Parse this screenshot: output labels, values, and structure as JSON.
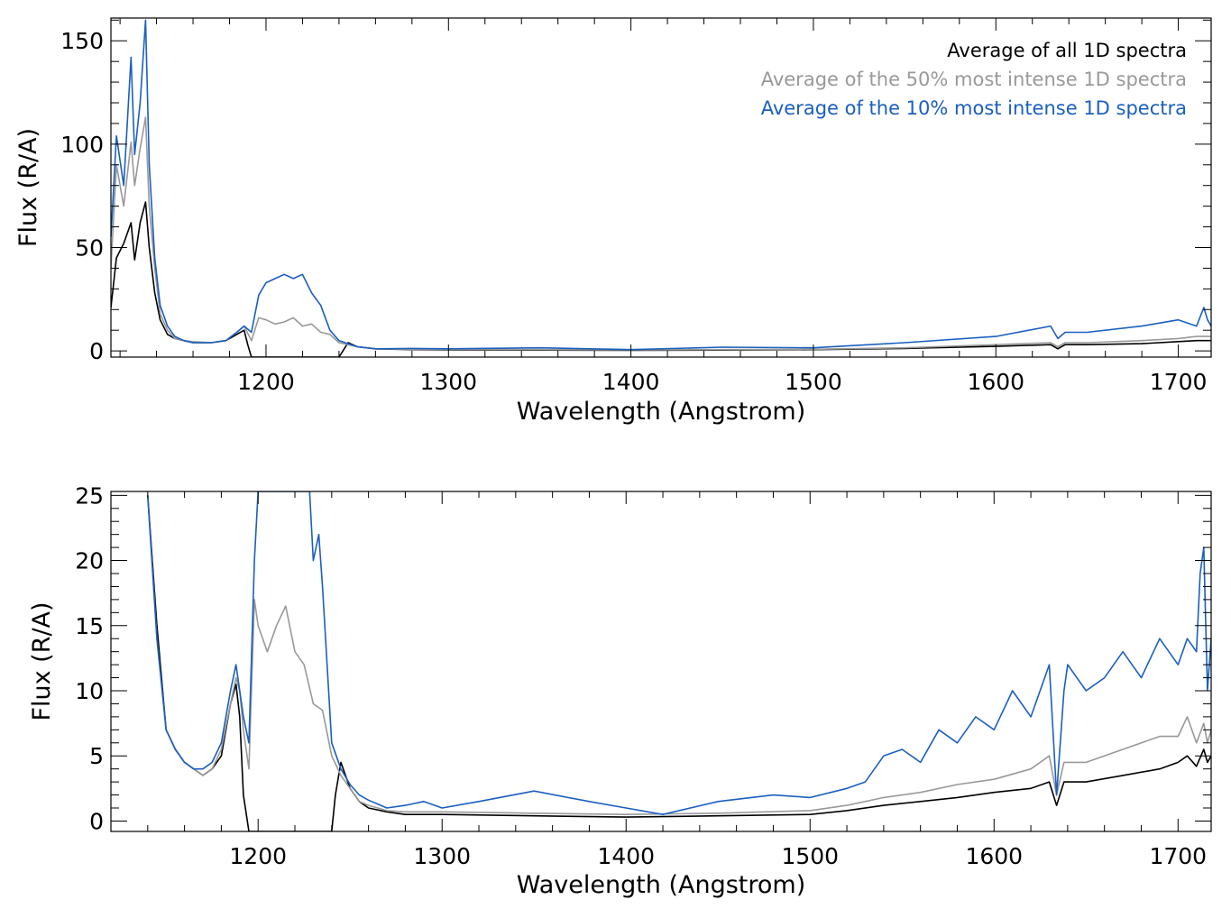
{
  "chart_data": [
    {
      "type": "line",
      "title": "",
      "xlabel": "Wavelength (Angstrom)",
      "ylabel": "Flux (R/A)",
      "xlim": [
        1115,
        1718
      ],
      "ylim": [
        -3,
        161
      ],
      "xticks": [
        1200,
        1300,
        1400,
        1500,
        1600,
        1700
      ],
      "yticks": [
        0,
        50,
        100,
        150
      ],
      "xminor_step": 20,
      "yminor_step": 10,
      "grid": false,
      "legend_position": "top-right",
      "legend": [
        {
          "label": "Average of all 1D spectra",
          "color": "#000000"
        },
        {
          "label": "Average of the 50% most intense 1D spectra",
          "color": "#999999"
        },
        {
          "label": "Average of the 10% most intense 1D spectra",
          "color": "#1a5fc0"
        }
      ],
      "series": [
        {
          "color": "#000000",
          "x": [
            1115,
            1118,
            1122,
            1126,
            1128,
            1131,
            1134,
            1136,
            1139,
            1142,
            1146,
            1150,
            1155,
            1160,
            1170,
            1178,
            1184,
            1188,
            1190,
            1192,
            1200,
            1240,
            1245,
            1250,
            1260,
            1280,
            1300,
            1350,
            1400,
            1450,
            1500,
            1550,
            1600,
            1630,
            1634,
            1638,
            1650,
            1680,
            1700,
            1710,
            1718
          ],
          "y": [
            21,
            45,
            52,
            62,
            44,
            62,
            72,
            50,
            28,
            15,
            8,
            6,
            5,
            4,
            4,
            5,
            8,
            10,
            3,
            -3,
            -3,
            -3,
            4,
            2,
            1,
            0.6,
            0.5,
            0.4,
            0.3,
            0.4,
            0.6,
            1.2,
            2.2,
            3,
            1,
            3,
            3,
            3.5,
            4.5,
            5,
            5
          ]
        },
        {
          "color": "#999999",
          "x": [
            1115,
            1118,
            1122,
            1126,
            1128,
            1131,
            1134,
            1136,
            1139,
            1142,
            1146,
            1150,
            1155,
            1160,
            1170,
            1178,
            1184,
            1188,
            1192,
            1196,
            1200,
            1205,
            1210,
            1215,
            1220,
            1225,
            1230,
            1235,
            1240,
            1245,
            1250,
            1260,
            1280,
            1300,
            1350,
            1400,
            1450,
            1500,
            1550,
            1600,
            1630,
            1634,
            1638,
            1650,
            1680,
            1700,
            1710,
            1718
          ],
          "y": [
            40,
            90,
            70,
            101,
            80,
            98,
            113,
            70,
            40,
            18,
            10,
            6,
            5,
            4.5,
            4,
            5,
            9,
            12,
            5,
            16,
            15,
            13,
            14,
            16,
            12,
            13,
            9,
            8,
            4,
            3,
            2,
            1,
            0.8,
            0.7,
            0.6,
            0.5,
            0.6,
            0.8,
            1.5,
            3,
            4,
            2,
            4,
            4,
            5,
            6,
            7,
            7
          ]
        },
        {
          "color": "#1a5fc0",
          "x": [
            1115,
            1118,
            1122,
            1126,
            1128,
            1131,
            1134,
            1136,
            1139,
            1142,
            1146,
            1150,
            1155,
            1160,
            1170,
            1178,
            1184,
            1188,
            1192,
            1196,
            1200,
            1205,
            1210,
            1215,
            1220,
            1225,
            1230,
            1235,
            1240,
            1245,
            1250,
            1260,
            1280,
            1300,
            1350,
            1400,
            1450,
            1500,
            1550,
            1600,
            1630,
            1634,
            1638,
            1650,
            1680,
            1700,
            1710,
            1714,
            1716,
            1718
          ],
          "y": [
            55,
            104,
            80,
            142,
            95,
            120,
            160,
            90,
            45,
            22,
            12,
            7,
            5,
            4,
            4,
            5,
            9,
            12,
            9,
            27,
            33,
            35,
            37,
            35,
            37,
            28,
            22,
            10,
            5,
            3.5,
            2,
            1,
            1.2,
            1,
            1.5,
            0.6,
            1.8,
            1.5,
            4,
            7,
            12,
            6,
            9,
            9,
            12,
            15,
            12,
            21,
            15,
            12
          ]
        }
      ]
    },
    {
      "type": "line",
      "title": "",
      "xlabel": "Wavelength (Angstrom)",
      "ylabel": "Flux (R/A)",
      "xlim": [
        1120,
        1718
      ],
      "ylim": [
        -0.8,
        25.3
      ],
      "xticks": [
        1200,
        1300,
        1400,
        1500,
        1600,
        1700
      ],
      "yticks": [
        0,
        5,
        10,
        15,
        20,
        25
      ],
      "xminor_step": 20,
      "yminor_step": 1,
      "grid": false,
      "series": [
        {
          "color": "#000000",
          "x": [
            1140,
            1145,
            1150,
            1155,
            1160,
            1165,
            1170,
            1175,
            1180,
            1185,
            1188,
            1190,
            1192,
            1195,
            1240,
            1242,
            1245,
            1250,
            1255,
            1260,
            1270,
            1280,
            1300,
            1350,
            1400,
            1450,
            1500,
            1520,
            1540,
            1560,
            1580,
            1600,
            1620,
            1630,
            1634,
            1638,
            1650,
            1670,
            1690,
            1700,
            1705,
            1710,
            1714,
            1716,
            1718
          ],
          "y": [
            25,
            15,
            7,
            5.5,
            4.5,
            4,
            3.5,
            4,
            5,
            9,
            10.5,
            8,
            2,
            -0.8,
            -0.8,
            2,
            4.5,
            2.5,
            1.5,
            1,
            0.7,
            0.5,
            0.5,
            0.4,
            0.3,
            0.4,
            0.5,
            0.8,
            1.2,
            1.5,
            1.8,
            2.2,
            2.5,
            3,
            1.2,
            3,
            3,
            3.5,
            4,
            4.5,
            5,
            4.2,
            5.5,
            4.5,
            5
          ]
        },
        {
          "color": "#999999",
          "x": [
            1140,
            1145,
            1150,
            1155,
            1160,
            1165,
            1170,
            1175,
            1180,
            1185,
            1188,
            1190,
            1192,
            1195,
            1198,
            1200,
            1205,
            1210,
            1215,
            1220,
            1225,
            1230,
            1235,
            1240,
            1245,
            1250,
            1255,
            1260,
            1270,
            1280,
            1300,
            1350,
            1400,
            1450,
            1500,
            1520,
            1540,
            1560,
            1580,
            1600,
            1620,
            1630,
            1634,
            1638,
            1650,
            1670,
            1690,
            1700,
            1705,
            1710,
            1714,
            1716,
            1718
          ],
          "y": [
            25,
            14,
            7,
            5.5,
            4.5,
            4,
            3.5,
            4,
            5.5,
            9,
            11,
            10,
            7,
            4,
            17,
            15,
            13,
            15,
            16.5,
            13,
            12,
            9,
            8.5,
            5,
            3.5,
            2.5,
            1.5,
            1.2,
            0.8,
            0.7,
            0.7,
            0.6,
            0.5,
            0.6,
            0.8,
            1.2,
            1.8,
            2.2,
            2.8,
            3.2,
            4,
            5,
            2,
            4.5,
            4.5,
            5.5,
            6.5,
            6.5,
            8,
            6,
            7.5,
            6,
            7
          ]
        },
        {
          "color": "#1a5fc0",
          "x": [
            1140,
            1145,
            1150,
            1155,
            1160,
            1165,
            1170,
            1175,
            1180,
            1185,
            1188,
            1190,
            1192,
            1195,
            1198,
            1200,
            1205,
            1210,
            1215,
            1220,
            1225,
            1228,
            1230,
            1233,
            1235,
            1240,
            1245,
            1250,
            1255,
            1260,
            1270,
            1280,
            1290,
            1300,
            1320,
            1350,
            1380,
            1400,
            1420,
            1450,
            1480,
            1500,
            1520,
            1530,
            1540,
            1550,
            1560,
            1570,
            1580,
            1590,
            1600,
            1610,
            1620,
            1630,
            1634,
            1638,
            1640,
            1650,
            1660,
            1670,
            1680,
            1690,
            1700,
            1705,
            1710,
            1712,
            1714,
            1716,
            1718
          ],
          "y": [
            25,
            14,
            7,
            5.5,
            4.5,
            4,
            4,
            4.5,
            6,
            10,
            12,
            10,
            8,
            6,
            20,
            25.3,
            25.3,
            25.3,
            25.3,
            25.3,
            25.3,
            25.3,
            20,
            22,
            18,
            6,
            4,
            2.8,
            2,
            1.6,
            1,
            1.2,
            1.5,
            1,
            1.5,
            2.3,
            1.5,
            1,
            0.5,
            1.5,
            2,
            1.8,
            2.5,
            3,
            5,
            5.5,
            4.5,
            7,
            6,
            8,
            7,
            10,
            8,
            12,
            2,
            10,
            12,
            10,
            11,
            13,
            11,
            14,
            12,
            14,
            13,
            19,
            21,
            10,
            14
          ]
        }
      ]
    }
  ]
}
